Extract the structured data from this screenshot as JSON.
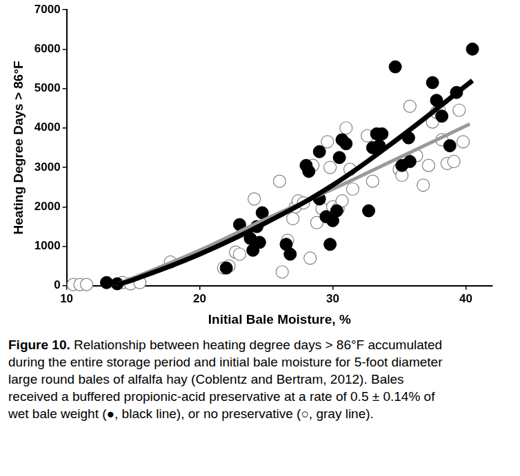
{
  "chart_data": {
    "type": "scatter",
    "x_label": "Initial Bale Moisture, %",
    "y_label": "Heating Degree Days > 86°F",
    "xlim": [
      10,
      42
    ],
    "xticks": [
      10,
      20,
      30,
      40
    ],
    "ylim": [
      0,
      7000
    ],
    "yticks": [
      0,
      1000,
      2000,
      3000,
      4000,
      5000,
      6000,
      7000
    ],
    "grid": false,
    "legend": false,
    "caption": {
      "label": "Figure 10.",
      "text": "Relationship between heating degree days > 86°F accumulated during the entire storage period and initial bale moisture for 5-foot diameter large round bales of alfalfa hay (Coblentz and Bertram, 2012). Bales received a buffered propionic-acid preservative at a rate of 0.5 ± 0.14% of wet bale weight (●, black line), or no preservative (○, gray line)."
    },
    "series": [
      {
        "type": "line",
        "color": "#000000",
        "line_style": "solid",
        "points": [
          [
            13.5,
            0
          ],
          [
            15,
            150
          ],
          [
            20,
            800
          ],
          [
            25,
            1600
          ],
          [
            30,
            2550
          ],
          [
            35,
            3750
          ],
          [
            40.5,
            5200
          ]
        ]
      },
      {
        "type": "line",
        "color": "#999999",
        "line_style": "solid",
        "points": [
          [
            13.5,
            0
          ],
          [
            15,
            200
          ],
          [
            20,
            900
          ],
          [
            25,
            1700
          ],
          [
            30,
            2450
          ],
          [
            35,
            3250
          ],
          [
            40.3,
            4100
          ]
        ]
      },
      {
        "type": "scatter",
        "color": "#000000",
        "marker": "circle",
        "points": [
          [
            13.0,
            80
          ],
          [
            13.8,
            50
          ],
          [
            22.0,
            450
          ],
          [
            23.0,
            1550
          ],
          [
            23.8,
            1200
          ],
          [
            24.0,
            900
          ],
          [
            24.3,
            1500
          ],
          [
            24.5,
            1100
          ],
          [
            24.7,
            1850
          ],
          [
            26.5,
            1050
          ],
          [
            26.8,
            800
          ],
          [
            28.0,
            3050
          ],
          [
            28.2,
            2900
          ],
          [
            29.0,
            3400
          ],
          [
            29.0,
            2200
          ],
          [
            29.5,
            1750
          ],
          [
            29.8,
            1050
          ],
          [
            30.0,
            1650
          ],
          [
            30.3,
            1900
          ],
          [
            30.5,
            3250
          ],
          [
            30.7,
            3700
          ],
          [
            31.0,
            3600
          ],
          [
            32.7,
            1900
          ],
          [
            33.0,
            3500
          ],
          [
            33.3,
            3850
          ],
          [
            33.5,
            3550
          ],
          [
            33.7,
            3850
          ],
          [
            34.7,
            5550
          ],
          [
            35.2,
            3050
          ],
          [
            35.7,
            3750
          ],
          [
            35.8,
            3150
          ],
          [
            37.5,
            5150
          ],
          [
            37.8,
            4700
          ],
          [
            38.2,
            4300
          ],
          [
            38.8,
            3550
          ],
          [
            39.3,
            4900
          ],
          [
            40.5,
            6000
          ]
        ]
      },
      {
        "type": "scatter",
        "color": "#808080",
        "marker": "open-circle",
        "points": [
          [
            10.5,
            30
          ],
          [
            11.0,
            30
          ],
          [
            11.5,
            30
          ],
          [
            14.2,
            80
          ],
          [
            14.8,
            50
          ],
          [
            15.5,
            80
          ],
          [
            17.8,
            600
          ],
          [
            21.8,
            450
          ],
          [
            22.2,
            500
          ],
          [
            22.7,
            850
          ],
          [
            23.0,
            800
          ],
          [
            24.1,
            2200
          ],
          [
            26.0,
            2650
          ],
          [
            26.2,
            350
          ],
          [
            26.6,
            1150
          ],
          [
            27.0,
            1700
          ],
          [
            27.2,
            2000
          ],
          [
            27.4,
            2150
          ],
          [
            27.8,
            2100
          ],
          [
            28.3,
            700
          ],
          [
            28.5,
            3050
          ],
          [
            28.8,
            1600
          ],
          [
            29.2,
            1950
          ],
          [
            29.6,
            3650
          ],
          [
            29.8,
            3000
          ],
          [
            30.0,
            2000
          ],
          [
            30.4,
            1950
          ],
          [
            30.7,
            2150
          ],
          [
            31.0,
            4000
          ],
          [
            31.3,
            2950
          ],
          [
            31.5,
            2450
          ],
          [
            32.6,
            3800
          ],
          [
            33.0,
            2650
          ],
          [
            35.0,
            2950
          ],
          [
            35.2,
            2800
          ],
          [
            35.8,
            4550
          ],
          [
            36.3,
            3300
          ],
          [
            36.8,
            2550
          ],
          [
            37.2,
            3050
          ],
          [
            37.5,
            4150
          ],
          [
            37.8,
            4400
          ],
          [
            38.0,
            4450
          ],
          [
            38.2,
            3700
          ],
          [
            38.6,
            3100
          ],
          [
            39.1,
            3150
          ],
          [
            39.5,
            4450
          ],
          [
            39.8,
            3650
          ]
        ]
      }
    ]
  }
}
